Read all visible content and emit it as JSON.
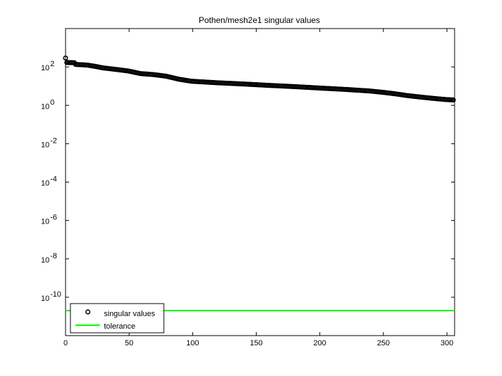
{
  "chart_data": {
    "type": "scatter",
    "title": "Pothen/mesh2e1 singular values",
    "xlabel": "",
    "ylabel": "",
    "x_scale": "linear",
    "y_scale": "log",
    "xlim": [
      0,
      306
    ],
    "ylim": [
      1e-12,
      10000
    ],
    "x_ticks": [
      "0",
      "50",
      "100",
      "150",
      "200",
      "250",
      "300"
    ],
    "y_ticks": [
      {
        "base": "10",
        "exp": "2",
        "value": 100
      },
      {
        "base": "10",
        "exp": "0",
        "value": 1
      },
      {
        "base": "10",
        "exp": "-2",
        "value": 0.01
      },
      {
        "base": "10",
        "exp": "-4",
        "value": 0.0001
      },
      {
        "base": "10",
        "exp": "-6",
        "value": 1e-06
      },
      {
        "base": "10",
        "exp": "-8",
        "value": 1e-08
      },
      {
        "base": "10",
        "exp": "-10",
        "value": 1e-10
      }
    ],
    "grid": false,
    "legend_position": "bottom-left",
    "series": [
      {
        "name": "singular values",
        "marker": "circle",
        "color": "#000000",
        "n": 306,
        "profile": [
          [
            1,
            290
          ],
          [
            2,
            170
          ],
          [
            8,
            165
          ],
          [
            9,
            135
          ],
          [
            18,
            125
          ],
          [
            25,
            105
          ],
          [
            30,
            90
          ],
          [
            40,
            75
          ],
          [
            50,
            62
          ],
          [
            60,
            45
          ],
          [
            70,
            40
          ],
          [
            80,
            33
          ],
          [
            90,
            23
          ],
          [
            100,
            18
          ],
          [
            120,
            15
          ],
          [
            140,
            13
          ],
          [
            160,
            11
          ],
          [
            180,
            9.5
          ],
          [
            200,
            8
          ],
          [
            220,
            6.8
          ],
          [
            240,
            5.6
          ],
          [
            250,
            4.8
          ],
          [
            260,
            4
          ],
          [
            270,
            3.2
          ],
          [
            280,
            2.7
          ],
          [
            290,
            2.3
          ],
          [
            300,
            2
          ],
          [
            306,
            1.9
          ]
        ]
      },
      {
        "name": "tolerance",
        "marker": "line",
        "color": "#00ff00",
        "value": 2e-11
      }
    ]
  }
}
